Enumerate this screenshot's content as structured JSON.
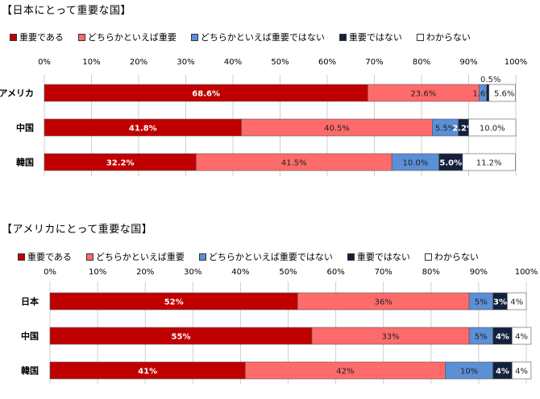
{
  "colors": {
    "very_important": "#C00000",
    "somewhat_important": "#FF6B6B",
    "not_very_important": "#5B8FD6",
    "not_important": "#14213D",
    "dont_know": "#FFFFFF"
  },
  "charts": [
    {
      "title": "【日本にとって重要な国】",
      "legend": [
        "重要である",
        "どちらかといえば重要",
        "どちらかといえば重要ではない",
        "重要ではない",
        "わからない"
      ],
      "ticks": [
        "0%",
        "10%",
        "20%",
        "30%",
        "40%",
        "50%",
        "60%",
        "70%",
        "80%",
        "90%",
        "100%"
      ]
    },
    {
      "title": "【アメリカにとって重要な国】",
      "legend": [
        "重要である",
        "どちらかといえば重要",
        "どちらかといえば重要ではない",
        "重要ではない",
        "わからない"
      ],
      "ticks": [
        "0%",
        "10%",
        "20%",
        "30%",
        "40%",
        "50%",
        "60%",
        "70%",
        "80%",
        "90%",
        "100%"
      ]
    }
  ],
  "chart_data": [
    {
      "type": "bar",
      "orientation": "horizontal",
      "stacked": true,
      "title": "【日本にとって重要な国】",
      "categories": [
        "アメリカ",
        "中国",
        "韓国"
      ],
      "xlim": [
        0,
        100
      ],
      "series": [
        {
          "name": "重要である",
          "values": [
            68.6,
            41.8,
            32.2
          ],
          "labels": [
            "68.6%",
            "41.8%",
            "32.2%"
          ]
        },
        {
          "name": "どちらかといえば重要",
          "values": [
            23.6,
            40.5,
            41.5
          ],
          "labels": [
            "23.6%",
            "40.5%",
            "41.5%"
          ]
        },
        {
          "name": "どちらかといえば重要ではない",
          "values": [
            1.6,
            5.5,
            10.0
          ],
          "labels": [
            "1.6%",
            "5.5%",
            "10.0%"
          ]
        },
        {
          "name": "重要ではない",
          "values": [
            0.5,
            2.2,
            5.0
          ],
          "labels": [
            "0.5%",
            "2.2%",
            "5.0%"
          ]
        },
        {
          "name": "わからない",
          "values": [
            5.6,
            10.0,
            11.2
          ],
          "labels": [
            "5.6%",
            "10.0%",
            "11.2%"
          ]
        }
      ]
    },
    {
      "type": "bar",
      "orientation": "horizontal",
      "stacked": true,
      "title": "【アメリカにとって重要な国】",
      "categories": [
        "日本",
        "中国",
        "韓国"
      ],
      "xlim": [
        0,
        100
      ],
      "series": [
        {
          "name": "重要である",
          "values": [
            52,
            55,
            41
          ],
          "labels": [
            "52%",
            "55%",
            "41%"
          ]
        },
        {
          "name": "どちらかといえば重要",
          "values": [
            36,
            33,
            42
          ],
          "labels": [
            "36%",
            "33%",
            "42%"
          ]
        },
        {
          "name": "どちらかといえば重要ではない",
          "values": [
            5,
            5,
            10
          ],
          "labels": [
            "5%",
            "5%",
            "10%"
          ]
        },
        {
          "name": "重要ではない",
          "values": [
            3,
            4,
            4
          ],
          "labels": [
            "3%",
            "4%",
            "4%"
          ]
        },
        {
          "name": "わからない",
          "values": [
            4,
            4,
            4
          ],
          "labels": [
            "4%",
            "4%",
            "4%"
          ]
        }
      ]
    }
  ]
}
